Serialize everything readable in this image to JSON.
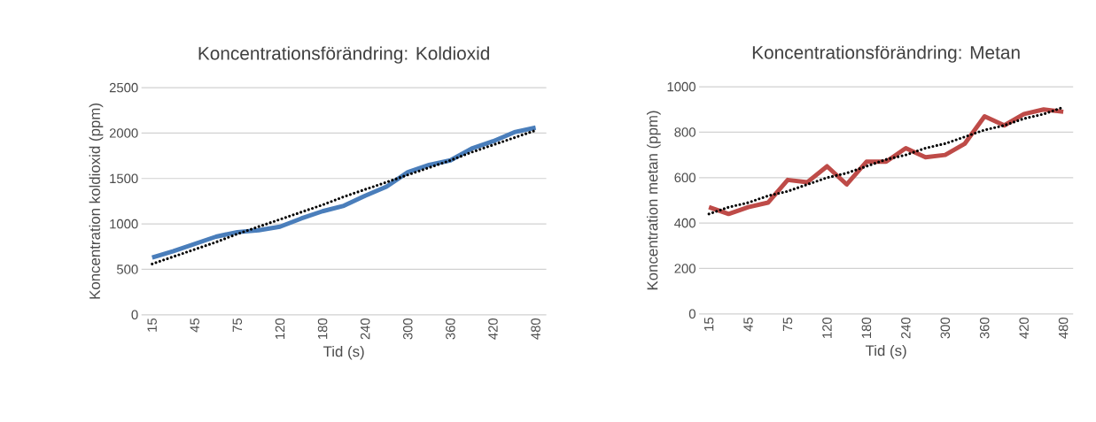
{
  "chart_data": [
    {
      "type": "line",
      "title": "Koncentrationsförändring: Koldioxid",
      "xlabel": "Tid (s)",
      "ylabel": "Koncentration koldioxid (ppm)",
      "categories": [
        "15",
        null,
        "45",
        null,
        "75",
        null,
        "120",
        null,
        "180",
        null,
        "240",
        null,
        "300",
        null,
        "360",
        null,
        "420",
        null,
        "480"
      ],
      "series": [
        {
          "color": "#4a7ebb",
          "line_style": "solid",
          "values": [
            630,
            700,
            780,
            860,
            910,
            930,
            970,
            1060,
            1140,
            1200,
            1310,
            1410,
            1570,
            1650,
            1700,
            1830,
            1910,
            2010,
            2060
          ]
        },
        {
          "color": "#000000",
          "line_style": "dotted",
          "values": [
            560,
            640,
            720,
            800,
            890,
            970,
            1050,
            1130,
            1210,
            1300,
            1380,
            1460,
            1540,
            1620,
            1700,
            1790,
            1870,
            1950,
            2030
          ]
        }
      ],
      "ylim": [
        0,
        2500
      ],
      "yticks": [
        0,
        500,
        1000,
        1500,
        2000,
        2500
      ],
      "grid": "y",
      "marker": "none"
    },
    {
      "type": "line",
      "title": "Koncentrationsförändring: Metan",
      "xlabel": "Tid (s)",
      "ylabel": "Koncentration metan (ppm)",
      "categories": [
        "15",
        null,
        "45",
        null,
        "75",
        null,
        "120",
        null,
        "180",
        null,
        "240",
        null,
        "300",
        null,
        "360",
        null,
        "420",
        null,
        "480"
      ],
      "series": [
        {
          "color": "#be4b48",
          "line_style": "solid",
          "values": [
            470,
            440,
            470,
            490,
            590,
            580,
            650,
            570,
            670,
            670,
            730,
            690,
            700,
            750,
            870,
            830,
            880,
            900,
            890
          ]
        },
        {
          "color": "#000000",
          "line_style": "dotted",
          "values": [
            440,
            470,
            490,
            520,
            540,
            570,
            600,
            620,
            650,
            680,
            700,
            730,
            750,
            780,
            810,
            830,
            860,
            880,
            910
          ]
        }
      ],
      "ylim": [
        0,
        1000
      ],
      "yticks": [
        0,
        200,
        400,
        600,
        800,
        1000
      ],
      "grid": "y",
      "marker": "none"
    }
  ]
}
